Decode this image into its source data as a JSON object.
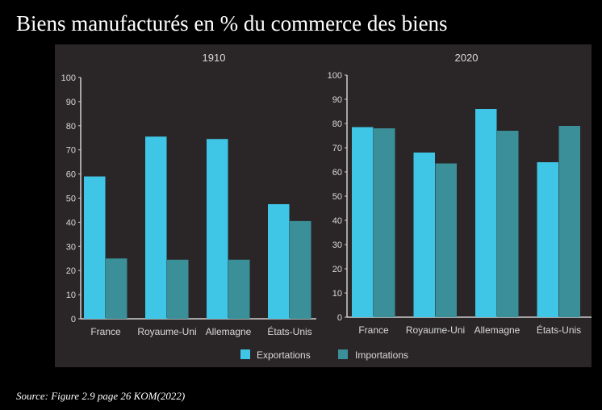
{
  "title": "Biens manufacturés en % du commerce des biens",
  "source": "Source: Figure 2.9 page 26 KOM(2022)",
  "colors": {
    "export": "#3fc6e6",
    "import": "#3a8f99",
    "panel": "#2a2627",
    "axis": "#cfcfcf"
  },
  "chart_data": [
    {
      "type": "bar",
      "title": "1910",
      "categories": [
        "France",
        "Royaume-Uni",
        "Allemagne",
        "États-Unis"
      ],
      "series": [
        {
          "name": "Exportations",
          "values": [
            59,
            75.5,
            74.5,
            47.5
          ]
        },
        {
          "name": "Importations",
          "values": [
            25,
            24.5,
            24.5,
            40.5
          ]
        }
      ],
      "ylim": [
        0,
        100
      ],
      "yticks": [
        "0",
        "10",
        "20",
        "30",
        "40",
        "50",
        "60",
        "70",
        "80",
        "90",
        "100"
      ]
    },
    {
      "type": "bar",
      "title": "2020",
      "categories": [
        "France",
        "Royaume-Uni",
        "Allemagne",
        "États-Unis"
      ],
      "series": [
        {
          "name": "Exportations",
          "values": [
            78.5,
            68,
            86,
            64
          ]
        },
        {
          "name": "Importations",
          "values": [
            78,
            63.5,
            77,
            79
          ]
        }
      ],
      "ylim": [
        0,
        100
      ],
      "yticks": [
        "0",
        "10",
        "20",
        "30",
        "40",
        "50",
        "60",
        "70",
        "80",
        "90",
        "100"
      ]
    }
  ],
  "legend": {
    "position": "bottom-center",
    "items": [
      "Exportations",
      "Importations"
    ]
  }
}
